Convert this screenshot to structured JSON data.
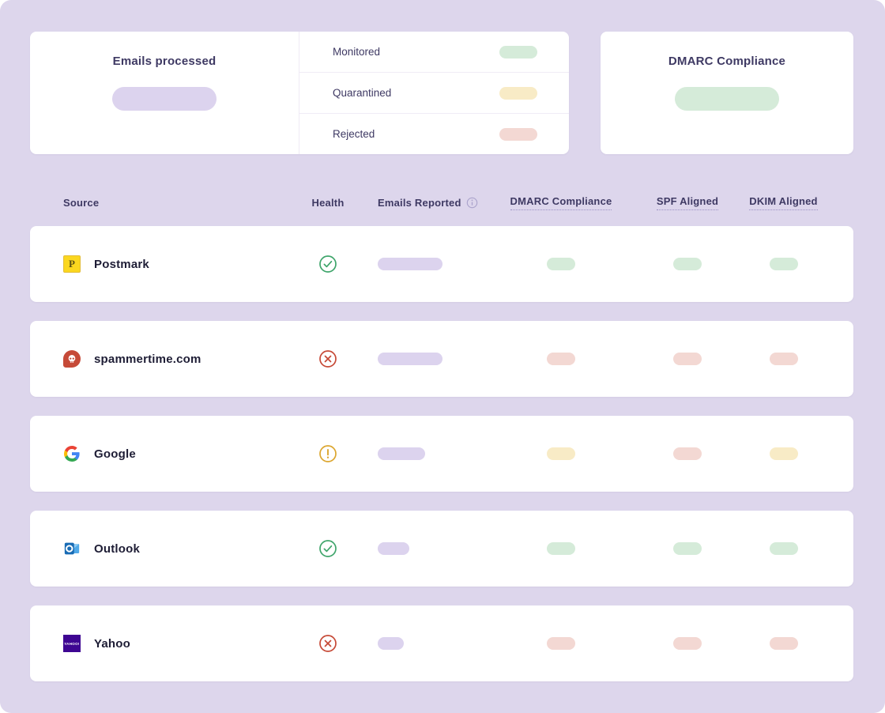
{
  "summary": {
    "emails_card": {
      "title": "Emails processed"
    },
    "breakdown": [
      {
        "label": "Monitored",
        "status": "pass"
      },
      {
        "label": "Quarantined",
        "status": "warn"
      },
      {
        "label": "Rejected",
        "status": "fail"
      }
    ],
    "dmarc_card": {
      "title": "DMARC Compliance"
    }
  },
  "table": {
    "headers": {
      "source": "Source",
      "health": "Health",
      "emails_reported": "Emails Reported",
      "dmarc": "DMARC Compliance",
      "spf": "SPF Aligned",
      "dkim": "DKIM Aligned"
    },
    "rows": [
      {
        "source": "Postmark",
        "source_icon": "postmark-icon",
        "health": "healthy",
        "health_icon": "check-circle-icon",
        "emails_reported_size": "lg",
        "dmarc": "pass",
        "spf": "pass",
        "dkim": "pass"
      },
      {
        "source": "spammertime.com",
        "source_icon": "spammertime-icon",
        "health": "failing",
        "health_icon": "x-circle-icon",
        "emails_reported_size": "lg",
        "dmarc": "fail",
        "spf": "fail",
        "dkim": "fail"
      },
      {
        "source": "Google",
        "source_icon": "google-icon",
        "health": "warning",
        "health_icon": "alert-circle-icon",
        "emails_reported_size": "md",
        "dmarc": "warn",
        "spf": "fail",
        "dkim": "warn"
      },
      {
        "source": "Outlook",
        "source_icon": "outlook-icon",
        "health": "healthy",
        "health_icon": "check-circle-icon",
        "emails_reported_size": "sm",
        "dmarc": "pass",
        "spf": "pass",
        "dkim": "pass"
      },
      {
        "source": "Yahoo",
        "source_icon": "yahoo-icon",
        "health": "failing",
        "health_icon": "x-circle-icon",
        "emails_reported_size": "xs",
        "dmarc": "fail",
        "spf": "fail",
        "dkim": "fail"
      }
    ]
  },
  "colors": {
    "background": "#ddd6ec",
    "card": "#ffffff",
    "text_primary": "#3e3963",
    "text_source": "#1e1d35",
    "pill_lavender": "#dcd3ee",
    "pill_green": "#d5ebd9",
    "pill_yellow": "#f8ebc6",
    "pill_red": "#f3d8d3",
    "health_green": "#3fa56b",
    "health_red": "#c64936",
    "health_amber": "#dca62f"
  }
}
